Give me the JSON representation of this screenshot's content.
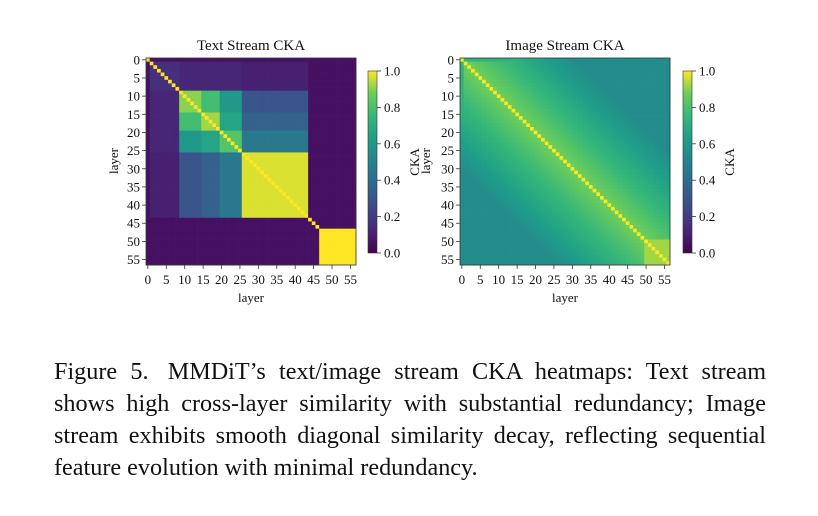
{
  "chart_data": [
    {
      "type": "heatmap",
      "title": "Text Stream CKA",
      "xlabel": "layer",
      "ylabel": "layer",
      "x_ticks": [
        "0",
        "5",
        "10",
        "15",
        "20",
        "25",
        "30",
        "35",
        "40",
        "45",
        "50",
        "55"
      ],
      "y_ticks": [
        "0",
        "5",
        "10",
        "15",
        "20",
        "25",
        "30",
        "35",
        "40",
        "45",
        "50",
        "55"
      ],
      "n_layers": 57,
      "colorbar": {
        "label": "CKA",
        "range": [
          0.0,
          1.0
        ],
        "ticks": [
          "0.0",
          "0.2",
          "0.4",
          "0.6",
          "0.8",
          "1.0"
        ]
      },
      "colormap": "viridis",
      "blocks": [
        {
          "name": "layer-0",
          "range": [
            0,
            0
          ],
          "value": 1.0
        },
        {
          "name": "layers-1-8",
          "range": [
            1,
            8
          ],
          "value": 0.15
        },
        {
          "name": "layers-9-14",
          "range": [
            9,
            14
          ],
          "value": 0.9
        },
        {
          "name": "layers-15-19",
          "range": [
            15,
            19
          ],
          "value": 0.92
        },
        {
          "name": "layers-20-25",
          "range": [
            20,
            25
          ],
          "value": 0.82
        },
        {
          "name": "layers-26-43",
          "range": [
            26,
            43
          ],
          "value": 0.97
        },
        {
          "name": "layers-44-46",
          "range": [
            44,
            46
          ],
          "value": 0.05
        },
        {
          "name": "layers-47-56",
          "range": [
            47,
            56
          ],
          "value": 1.0
        }
      ],
      "cross_similarity": [
        {
          "pair": [
            "layers-9-14",
            "layers-15-19"
          ],
          "value": 0.78
        },
        {
          "pair": [
            "layers-9-14",
            "layers-20-25"
          ],
          "value": 0.6
        },
        {
          "pair": [
            "layers-15-19",
            "layers-20-25"
          ],
          "value": 0.66
        },
        {
          "pair": [
            "layers-9-14",
            "layers-26-43"
          ],
          "value": 0.3
        },
        {
          "pair": [
            "layers-15-19",
            "layers-26-43"
          ],
          "value": 0.35
        },
        {
          "pair": [
            "layers-20-25",
            "layers-26-43"
          ],
          "value": 0.45
        },
        {
          "pair": [
            "layers-1-8",
            "layers-9-14"
          ],
          "value": 0.12
        },
        {
          "pair": [
            "layers-1-8",
            "layers-15-19"
          ],
          "value": 0.12
        },
        {
          "pair": [
            "layers-1-8",
            "layers-20-25"
          ],
          "value": 0.12
        },
        {
          "pair": [
            "layers-1-8",
            "layers-26-43"
          ],
          "value": 0.1
        }
      ],
      "default_offdiag": 0.05
    },
    {
      "type": "heatmap",
      "title": "Image Stream CKA",
      "xlabel": "layer",
      "ylabel": "layer",
      "x_ticks": [
        "0",
        "5",
        "10",
        "15",
        "20",
        "25",
        "30",
        "35",
        "40",
        "45",
        "50",
        "55"
      ],
      "y_ticks": [
        "0",
        "5",
        "10",
        "15",
        "20",
        "25",
        "30",
        "35",
        "40",
        "45",
        "50",
        "55"
      ],
      "n_layers": 57,
      "colorbar": {
        "label": "CKA",
        "range": [
          0.0,
          1.0
        ],
        "ticks": [
          "0.0",
          "0.2",
          "0.4",
          "0.6",
          "0.8",
          "1.0"
        ]
      },
      "colormap": "viridis",
      "diagonal_value": 1.0,
      "decay_per_layer": 0.011,
      "min_value": 0.55,
      "late_block": {
        "range": [
          50,
          56
        ],
        "value": 0.92
      },
      "early_layer_value": 0.72
    }
  ],
  "caption": {
    "label": "Figure 5.",
    "text": "MMDiT’s text/image stream CKA heatmaps: Text stream shows high cross-layer similarity with substantial redundancy; Image stream exhibits smooth diagonal similarity decay, reflecting sequential feature evolution with minimal redundancy."
  }
}
